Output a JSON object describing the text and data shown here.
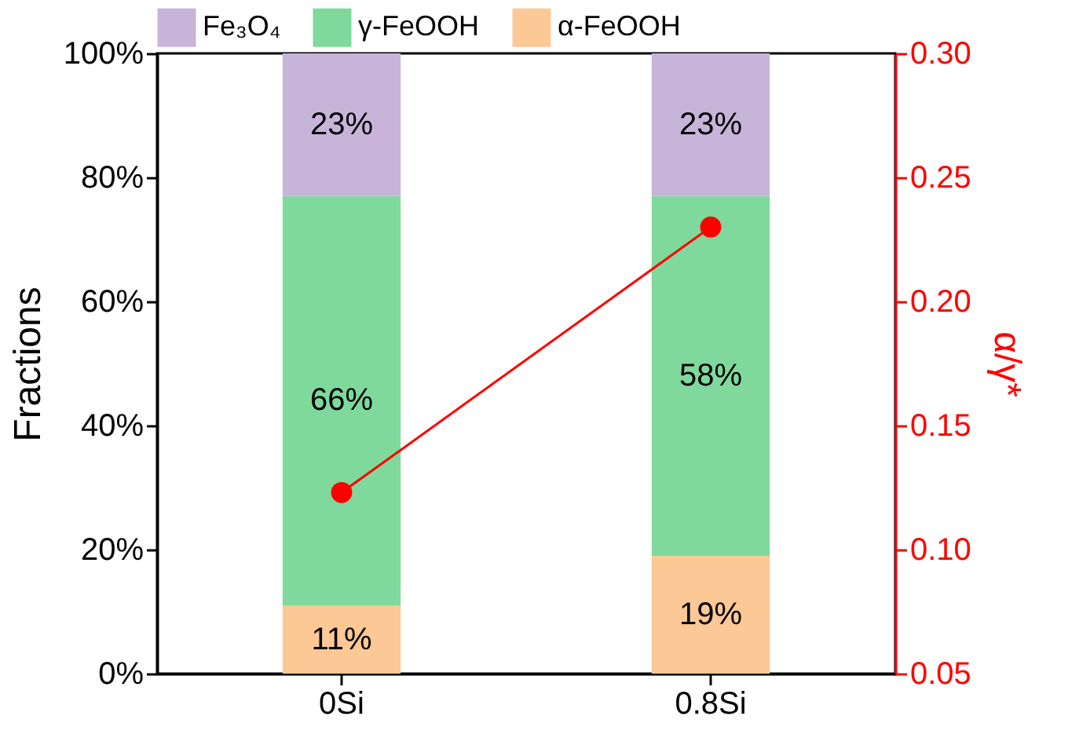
{
  "chart_data": {
    "type": "bar",
    "stacked": true,
    "ylabel": "Fractions",
    "y2label": "α/γ*",
    "categories": [
      "0Si",
      "0.8Si"
    ],
    "ylim": [
      0,
      100
    ],
    "yticks": [
      {
        "value": 0,
        "label": "0%"
      },
      {
        "value": 20,
        "label": "20%"
      },
      {
        "value": 40,
        "label": "40%"
      },
      {
        "value": 60,
        "label": "60%"
      },
      {
        "value": 80,
        "label": "80%"
      },
      {
        "value": 100,
        "label": "100%"
      }
    ],
    "y2lim": [
      0.05,
      0.3
    ],
    "y2ticks": [
      {
        "value": 0.05,
        "label": "0.05"
      },
      {
        "value": 0.1,
        "label": "0.10"
      },
      {
        "value": 0.15,
        "label": "0.15"
      },
      {
        "value": 0.2,
        "label": "0.20"
      },
      {
        "value": 0.25,
        "label": "0.25"
      },
      {
        "value": 0.3,
        "label": "0.30"
      }
    ],
    "series": [
      {
        "name": "α-FeOOH",
        "color": "#fcc896",
        "values": [
          11,
          19
        ],
        "value_labels": [
          "11%",
          "19%"
        ]
      },
      {
        "name": "γ-FeOOH",
        "color": "#7fd99c",
        "values": [
          66,
          58
        ],
        "value_labels": [
          "66%",
          "58%"
        ]
      },
      {
        "name": "Fe₃O₄",
        "color": "#c8b4d8",
        "values": [
          23,
          23
        ],
        "value_labels": [
          "23%",
          "23%"
        ]
      },
      {
        "type": "line",
        "axis": "y2",
        "color": "#ff0000",
        "values": [
          0.123,
          0.23
        ],
        "marker": "circle"
      }
    ],
    "legend": "top",
    "grid": false
  }
}
